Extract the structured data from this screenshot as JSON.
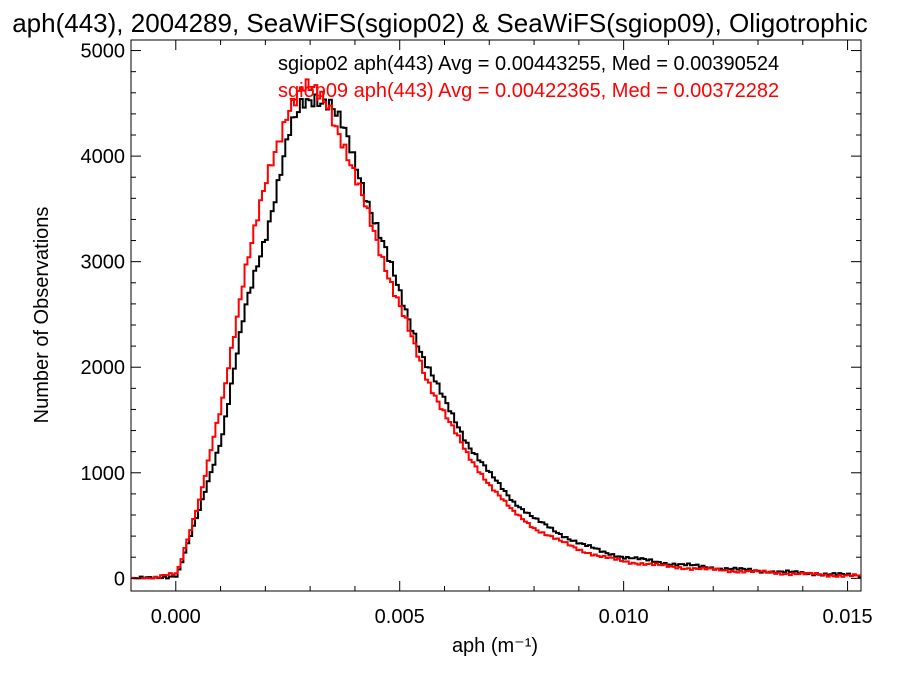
{
  "chart_data": {
    "type": "line",
    "step": true,
    "title": "aph(443), 2004289, SeaWiFS(sgiop02) & SeaWiFS(sgiop09), Oligotrophic",
    "xlabel": "aph (m⁻¹)",
    "ylabel": "Number of Observations",
    "xlim": [
      -0.001,
      0.0153
    ],
    "ylim": [
      -120,
      5100
    ],
    "xticks": [
      0.0,
      0.005,
      0.01,
      0.015
    ],
    "xtick_labels": [
      "0.000",
      "0.005",
      "0.010",
      "0.015"
    ],
    "yticks": [
      0,
      1000,
      2000,
      3000,
      4000,
      5000
    ],
    "ytick_labels": [
      "0",
      "1000",
      "2000",
      "3000",
      "4000",
      "5000"
    ],
    "grid": false,
    "legend_position": "top-right",
    "x": [
      -0.001,
      -0.0005,
      0.0,
      0.0005,
      0.001,
      0.0015,
      0.002,
      0.0025,
      0.0028,
      0.0031,
      0.0034,
      0.0037,
      0.004,
      0.0045,
      0.005,
      0.0055,
      0.006,
      0.0065,
      0.007,
      0.0075,
      0.008,
      0.0085,
      0.009,
      0.0095,
      0.01,
      0.011,
      0.012,
      0.013,
      0.014,
      0.015,
      0.0153
    ],
    "series": [
      {
        "name": "sgiop02 aph(443) Avg = 0.00443255, Med = 0.00390524",
        "color": "#000000",
        "values": [
          0,
          0,
          30,
          650,
          1350,
          2500,
          3300,
          4200,
          4480,
          4580,
          4520,
          4250,
          3900,
          3300,
          2650,
          2100,
          1650,
          1270,
          980,
          730,
          560,
          430,
          330,
          250,
          200,
          140,
          100,
          70,
          50,
          30,
          25
        ]
      },
      {
        "name": "sgiop09 aph(443) Avg = 0.00422365, Med = 0.00372282",
        "color": "#ff0000",
        "values": [
          0,
          0,
          50,
          750,
          1650,
          2900,
          3750,
          4500,
          4650,
          4580,
          4480,
          4150,
          3750,
          3150,
          2550,
          1950,
          1550,
          1150,
          880,
          630,
          470,
          360,
          270,
          200,
          160,
          110,
          80,
          60,
          40,
          25,
          20
        ]
      }
    ]
  }
}
